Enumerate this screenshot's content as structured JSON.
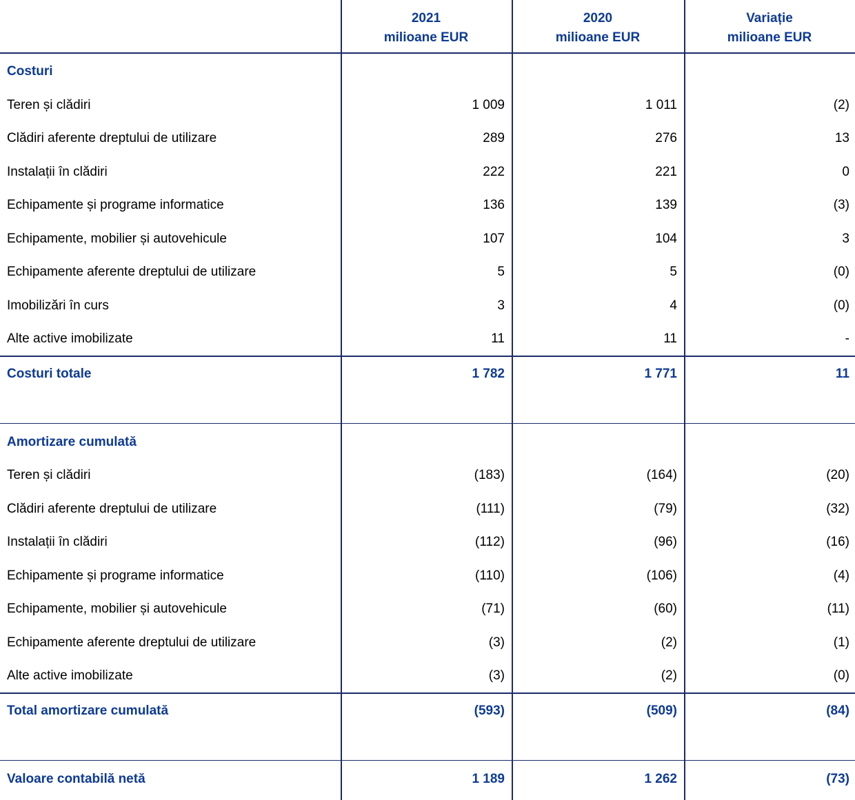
{
  "header": {
    "columns": [
      {
        "year": "2021",
        "unit": "milioane EUR"
      },
      {
        "year": "2020",
        "unit": "milioane EUR"
      },
      {
        "year": "Variație",
        "unit": "milioane EUR"
      }
    ]
  },
  "sections": [
    {
      "title": "Costuri",
      "rows": [
        {
          "label": "Teren și clădiri",
          "values": [
            "1 009",
            "1 011",
            "(2)"
          ]
        },
        {
          "label": "Clădiri aferente dreptului de utilizare",
          "values": [
            "289",
            "276",
            "13"
          ]
        },
        {
          "label": "Instalații în clădiri",
          "values": [
            "222",
            "221",
            "0"
          ]
        },
        {
          "label": "Echipamente și programe informatice",
          "values": [
            "136",
            "139",
            "(3)"
          ]
        },
        {
          "label": "Echipamente, mobilier și autovehicule",
          "values": [
            "107",
            "104",
            "3"
          ]
        },
        {
          "label": "Echipamente aferente dreptului de utilizare",
          "values": [
            "5",
            "5",
            "(0)"
          ]
        },
        {
          "label": "Imobilizări în curs",
          "values": [
            "3",
            "4",
            "(0)"
          ]
        },
        {
          "label": "Alte active imobilizate",
          "values": [
            "11",
            "11",
            "-"
          ]
        }
      ],
      "total": {
        "label": "Costuri totale",
        "values": [
          "1 782",
          "1 771",
          "11"
        ]
      }
    },
    {
      "title": "Amortizare cumulată",
      "rows": [
        {
          "label": "Teren și clădiri",
          "values": [
            "(183)",
            "(164)",
            "(20)"
          ]
        },
        {
          "label": "Clădiri aferente dreptului de utilizare",
          "values": [
            "(111)",
            "(79)",
            "(32)"
          ]
        },
        {
          "label": "Instalații în clădiri",
          "values": [
            "(112)",
            "(96)",
            "(16)"
          ]
        },
        {
          "label": "Echipamente și programe informatice",
          "values": [
            "(110)",
            "(106)",
            "(4)"
          ]
        },
        {
          "label": "Echipamente, mobilier și autovehicule",
          "values": [
            "(71)",
            "(60)",
            "(11)"
          ]
        },
        {
          "label": "Echipamente aferente dreptului de utilizare",
          "values": [
            "(3)",
            "(2)",
            "(1)"
          ]
        },
        {
          "label": "Alte active imobilizate",
          "values": [
            "(3)",
            "(2)",
            "(0)"
          ]
        }
      ],
      "total": {
        "label": "Total amortizare cumulată",
        "values": [
          "(593)",
          "(509)",
          "(84)"
        ]
      }
    }
  ],
  "net": {
    "label": "Valoare contabilă netă",
    "values": [
      "1 189",
      "1 262",
      "(73)"
    ]
  }
}
